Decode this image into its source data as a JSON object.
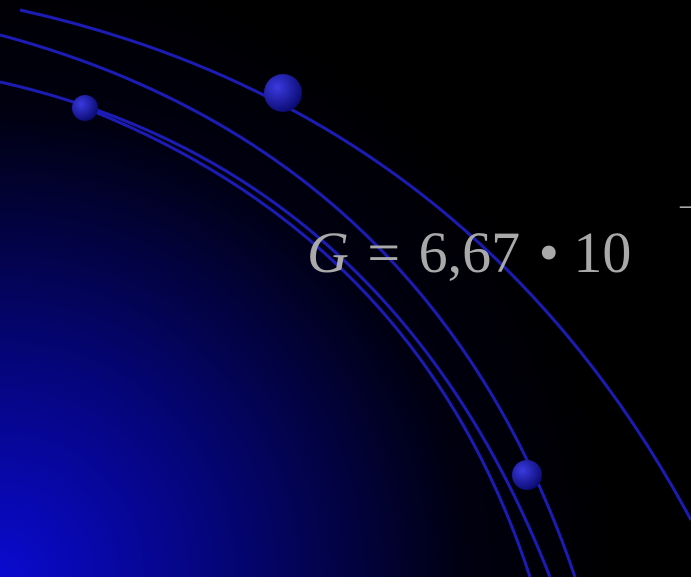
{
  "formula": {
    "variable": "G",
    "equals": "=",
    "mantissa": "6,67",
    "operator": "•",
    "base": "10",
    "exponent_fragment": "–"
  }
}
